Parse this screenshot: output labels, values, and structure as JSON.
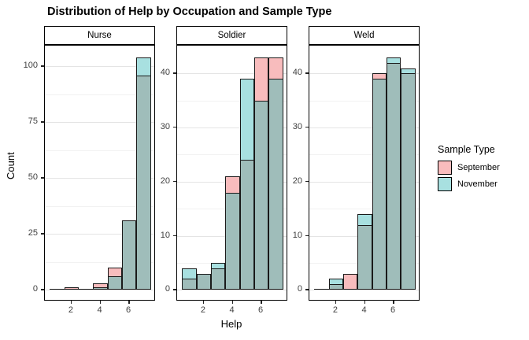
{
  "title": "Distribution of Help by Occupation and Sample Type",
  "axes": {
    "x_title": "Help",
    "y_title": "Count",
    "x_tick_values": [
      2,
      4,
      6
    ],
    "x_tick_labels": [
      "2",
      "4",
      "6"
    ]
  },
  "legend": {
    "title": "Sample Type",
    "entries": [
      {
        "label": "September",
        "color": "#F8BCBD"
      },
      {
        "label": "November",
        "color": "#A8E0E0"
      }
    ]
  },
  "colors": {
    "september": "#F8BCBD",
    "november": "#A8E0E0",
    "overlap": "#9FBDBA",
    "outline": "#1A1A1A",
    "grid_major": "#E4E4E4",
    "grid_minor": "#F2F2F2",
    "axis_text": "#404040"
  },
  "chart_data": [
    {
      "type": "bar",
      "subtype": "overlaid-histogram",
      "facet": "Nurse",
      "xlabel": "Help",
      "ylabel": "Count",
      "bin_centers": [
        1,
        2,
        3,
        4,
        5,
        6,
        7
      ],
      "binwidth": 1,
      "series": [
        {
          "name": "September",
          "values": [
            0,
            1,
            0,
            3,
            10,
            31,
            96
          ]
        },
        {
          "name": "November",
          "values": [
            0,
            0,
            0,
            1,
            6,
            31,
            104
          ]
        }
      ],
      "y_ticks": [
        0,
        25,
        50,
        75,
        100
      ],
      "y_minor_ticks": [
        12.5,
        37.5,
        62.5,
        87.5
      ],
      "ylim": [
        0,
        104
      ],
      "xlim": [
        0.5,
        7.5
      ],
      "grid": "horizontal-only",
      "legend_position": "right"
    },
    {
      "type": "bar",
      "subtype": "overlaid-histogram",
      "facet": "Soldier",
      "xlabel": "Help",
      "ylabel": "Count",
      "bin_centers": [
        1,
        2,
        3,
        4,
        5,
        6,
        7
      ],
      "binwidth": 1,
      "series": [
        {
          "name": "September",
          "values": [
            2,
            3,
            4,
            21,
            24,
            43,
            43
          ]
        },
        {
          "name": "November",
          "values": [
            4,
            3,
            5,
            18,
            39,
            35,
            39
          ]
        }
      ],
      "y_ticks": [
        0,
        10,
        20,
        30,
        40
      ],
      "y_minor_ticks": [
        5,
        15,
        25,
        35,
        45
      ],
      "ylim": [
        0,
        43
      ],
      "xlim": [
        0.5,
        7.5
      ],
      "grid": "horizontal-only",
      "legend_position": "right"
    },
    {
      "type": "bar",
      "subtype": "overlaid-histogram",
      "facet": "Weld",
      "xlabel": "Help",
      "ylabel": "Count",
      "bin_centers": [
        1,
        2,
        3,
        4,
        5,
        6,
        7
      ],
      "binwidth": 1,
      "series": [
        {
          "name": "September",
          "values": [
            0,
            1,
            3,
            12,
            40,
            42,
            40
          ]
        },
        {
          "name": "November",
          "values": [
            0,
            2,
            0,
            14,
            39,
            43,
            41
          ]
        }
      ],
      "y_ticks": [
        0,
        10,
        20,
        30,
        40
      ],
      "y_minor_ticks": [
        5,
        15,
        25,
        35,
        45
      ],
      "ylim": [
        0,
        43
      ],
      "xlim": [
        0.5,
        7.5
      ],
      "grid": "horizontal-only",
      "legend_position": "right"
    }
  ]
}
